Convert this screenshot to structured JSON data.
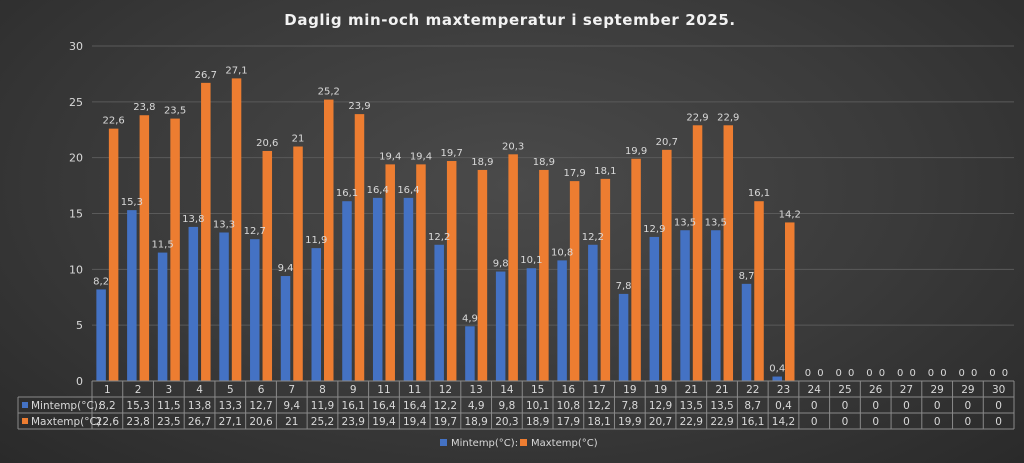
{
  "chart_data": {
    "type": "bar",
    "title": "Daglig min-och maxtemperatur i september 2025.",
    "xlabel": "",
    "ylabel": "",
    "ylim": [
      0,
      30
    ],
    "yticks": [
      0,
      5,
      10,
      15,
      20,
      25,
      30
    ],
    "grid": true,
    "legend_placement": "bottom",
    "categories": [
      "1",
      "2",
      "3",
      "4",
      "5",
      "6",
      "7",
      "8",
      "9",
      "11",
      "11",
      "12",
      "13",
      "14",
      "15",
      "16",
      "17",
      "19",
      "19",
      "21",
      "21",
      "22",
      "23",
      "24",
      "25",
      "26",
      "27",
      "29",
      "29",
      "30"
    ],
    "series": [
      {
        "name": "Mintemp(°C):",
        "color": "#4472c4",
        "values": [
          8.2,
          15.3,
          11.5,
          13.8,
          13.3,
          12.7,
          9.4,
          11.9,
          16.1,
          16.4,
          16.4,
          12.2,
          4.9,
          9.8,
          10.1,
          10.8,
          12.2,
          7.8,
          12.9,
          13.5,
          13.5,
          8.7,
          0.4,
          0,
          0,
          0,
          0,
          0,
          0,
          0
        ],
        "labels": [
          "8,2",
          "15,3",
          "11,5",
          "13,8",
          "13,3",
          "12,7",
          "9,4",
          "11,9",
          "16,1",
          "16,4",
          "16,4",
          "12,2",
          "4,9",
          "9,8",
          "10,1",
          "10,8",
          "12,2",
          "7,8",
          "12,9",
          "13,5",
          "13,5",
          "8,7",
          "0,4",
          "0",
          "0",
          "0",
          "0",
          "0",
          "0",
          "0"
        ]
      },
      {
        "name": "Maxtemp(°C)",
        "color": "#ed7d31",
        "values": [
          22.6,
          23.8,
          23.5,
          26.7,
          27.1,
          20.6,
          21,
          25.2,
          23.9,
          19.4,
          19.4,
          19.7,
          18.9,
          20.3,
          18.9,
          17.9,
          18.1,
          19.9,
          20.7,
          22.9,
          22.9,
          16.1,
          14.2,
          0,
          0,
          0,
          0,
          0,
          0,
          0
        ],
        "labels": [
          "22,6",
          "23,8",
          "23,5",
          "26,7",
          "27,1",
          "20,6",
          "21",
          "25,2",
          "23,9",
          "19,4",
          "19,4",
          "19,7",
          "18,9",
          "20,3",
          "18,9",
          "17,9",
          "18,1",
          "19,9",
          "20,7",
          "22,9",
          "22,9",
          "16,1",
          "14,2",
          "0",
          "0",
          "0",
          "0",
          "0",
          "0",
          "0"
        ]
      }
    ]
  }
}
